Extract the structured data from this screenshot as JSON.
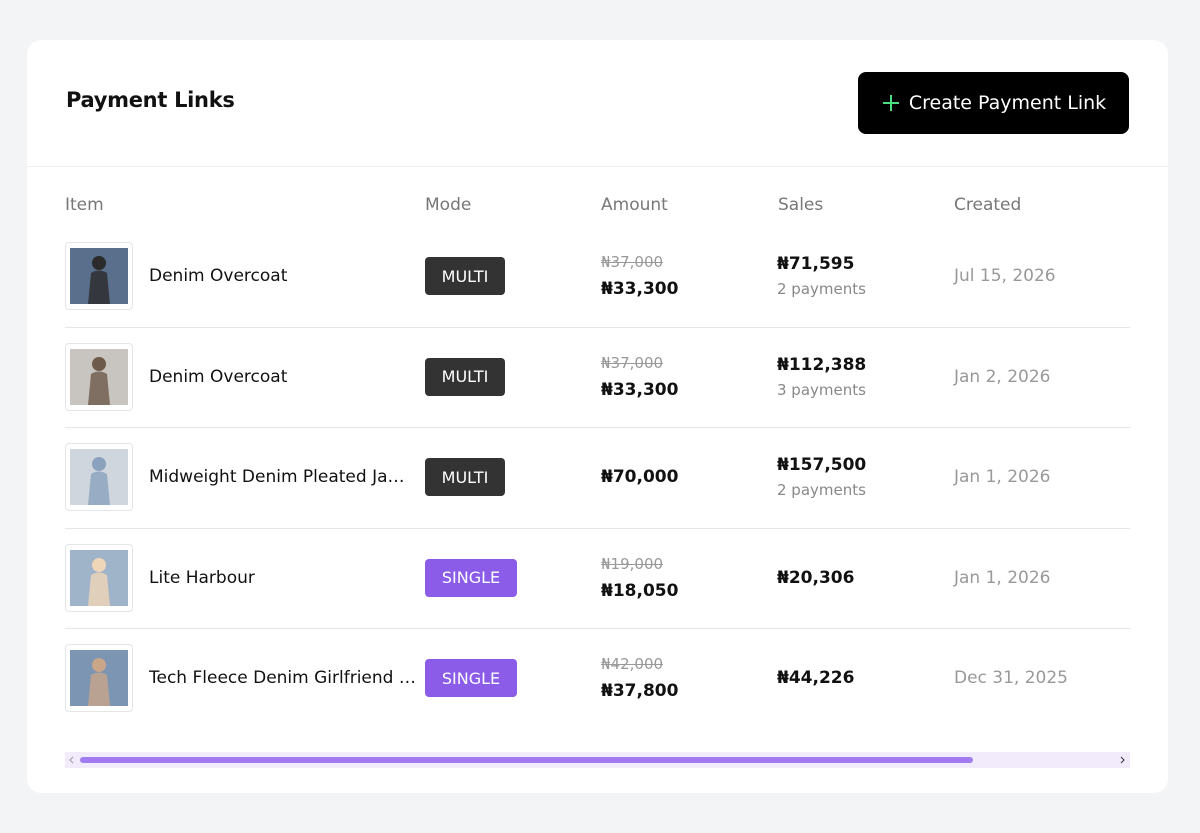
{
  "header": {
    "title": "Payment Links",
    "button": "Create Payment Link"
  },
  "table": {
    "columns": [
      "Item",
      "Mode",
      "Amount",
      "Sales",
      "Created"
    ],
    "rows": [
      {
        "item": "Denim Overcoat",
        "mode": "MULTI",
        "original_price": "₦37,000",
        "price": "₦33,300",
        "sales": "₦71,595",
        "payments": "2 payments",
        "created": "Jul 15, 2026"
      },
      {
        "item": "Denim Overcoat",
        "mode": "MULTI",
        "original_price": "₦37,000",
        "price": "₦33,300",
        "sales": "₦112,388",
        "payments": "3 payments",
        "created": "Jan 2, 2026"
      },
      {
        "item": "Midweight Denim Pleated Ja…",
        "mode": "MULTI",
        "price": "₦70,000",
        "sales": "₦157,500",
        "payments": "2 payments",
        "created": "Jan 1, 2026"
      },
      {
        "item": "Lite Harbour",
        "mode": "SINGLE",
        "original_price": "₦19,000",
        "price": "₦18,050",
        "sales": "₦20,306",
        "created": "Jan 1, 2026"
      },
      {
        "item": "Tech Fleece Denim Girlfriend …",
        "mode": "SINGLE",
        "original_price": "₦42,000",
        "price": "₦37,800",
        "sales": "₦44,226",
        "created": "Dec 31, 2025"
      }
    ]
  }
}
